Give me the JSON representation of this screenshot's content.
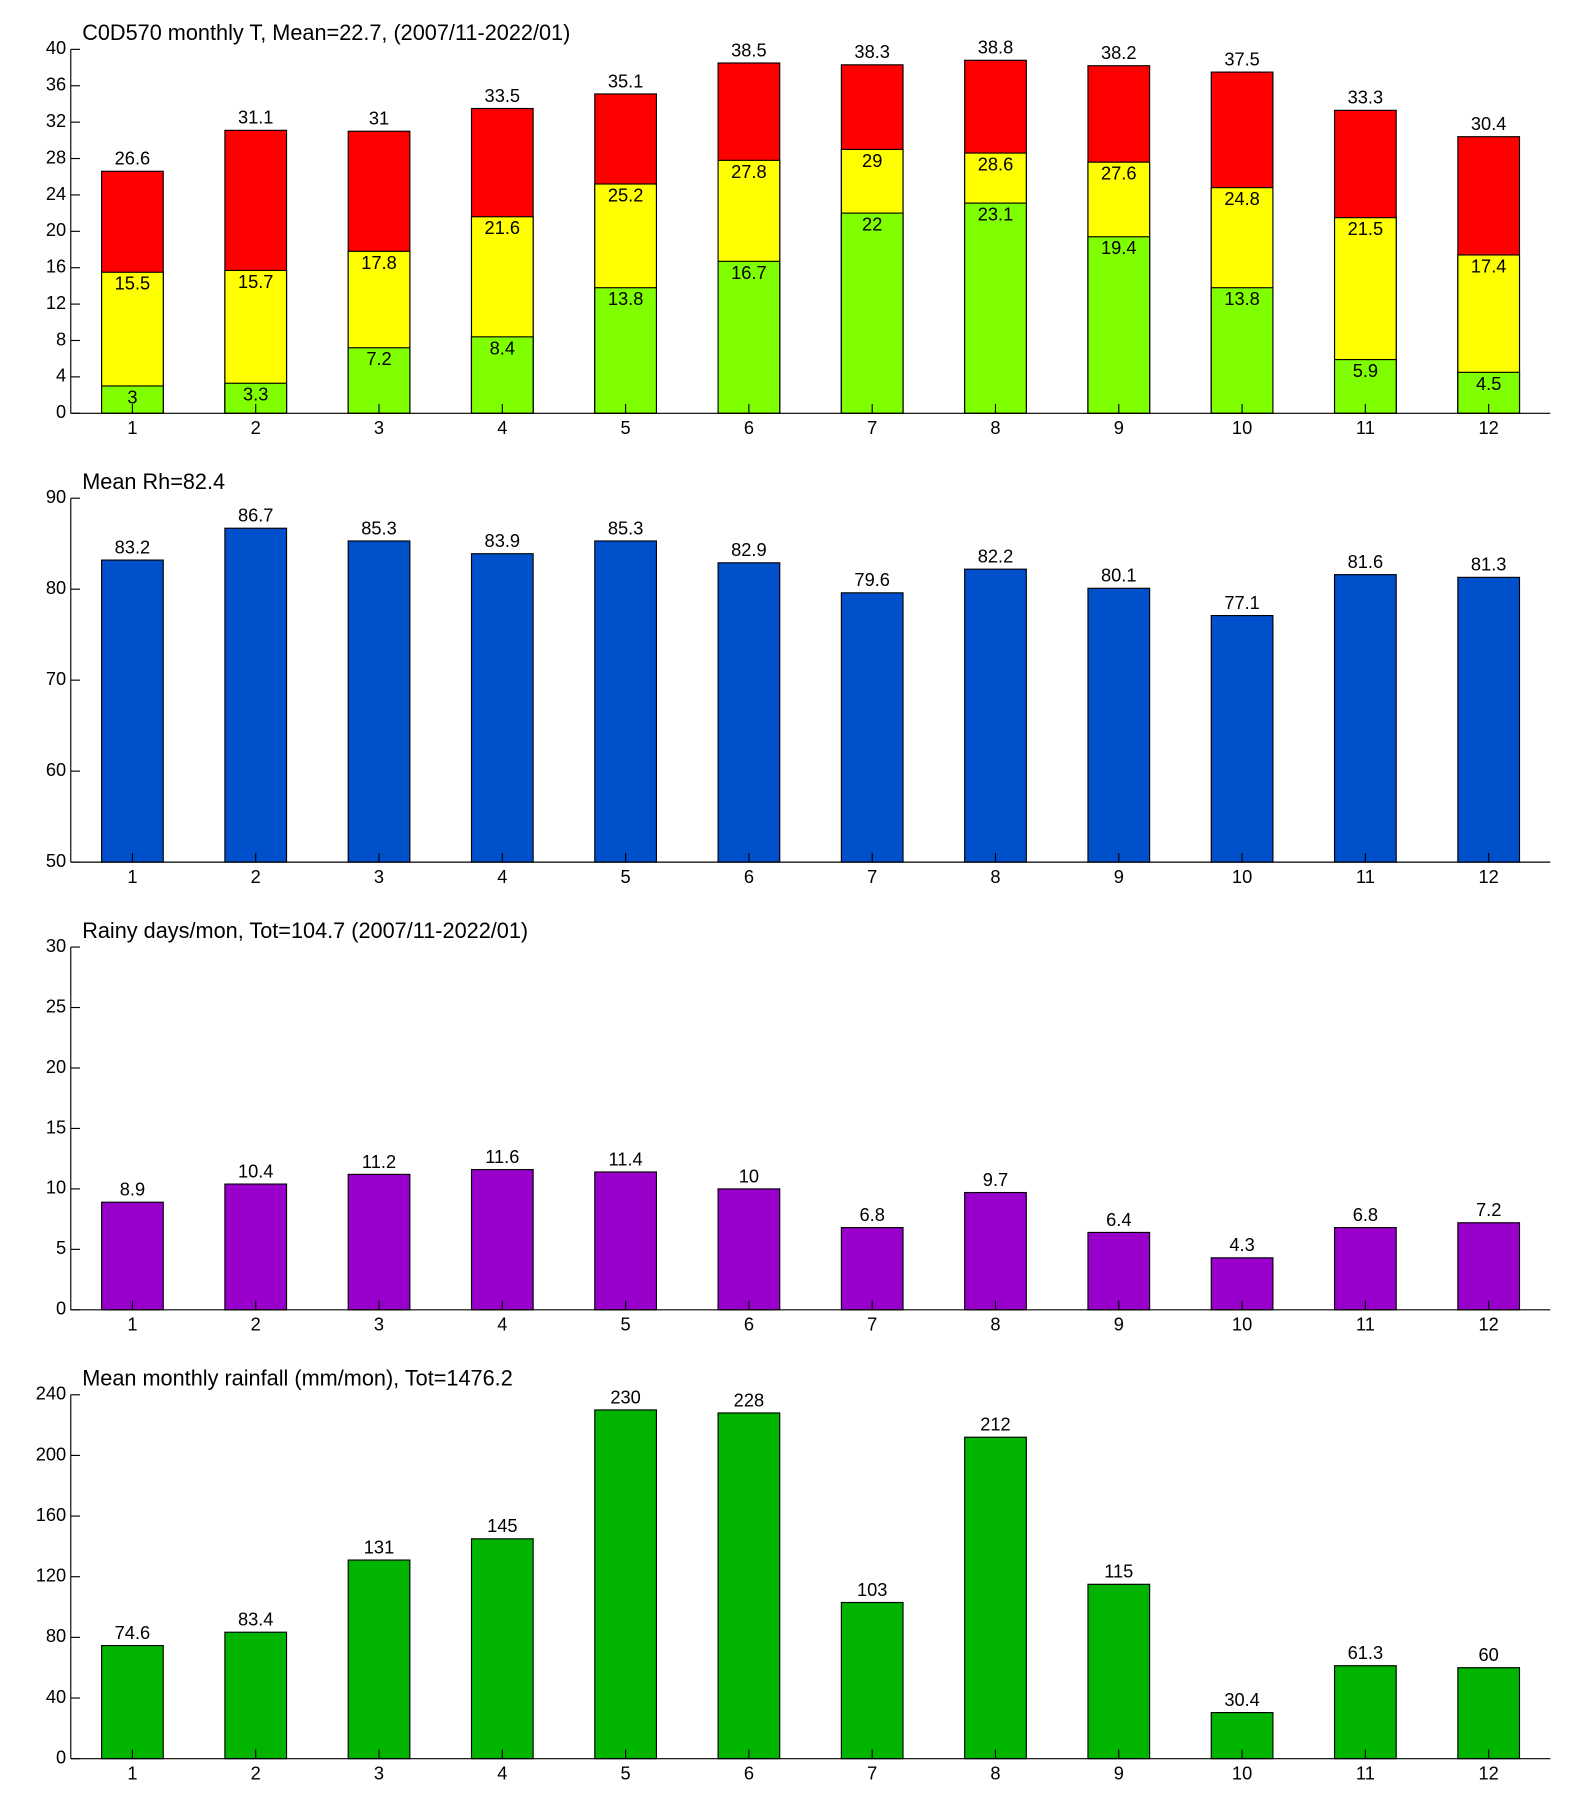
{
  "chart_data": [
    {
      "type": "bar",
      "title": "C0D570 monthly T, Mean=22.7, (2007/11-2022/01)",
      "categories": [
        "1",
        "2",
        "3",
        "4",
        "5",
        "6",
        "7",
        "8",
        "9",
        "10",
        "11",
        "12"
      ],
      "overlay": true,
      "series": [
        {
          "color": "#ff0000",
          "values": [
            26.6,
            31.1,
            31,
            33.5,
            35.1,
            38.5,
            38.3,
            38.8,
            38.2,
            37.5,
            33.3,
            30.4
          ]
        },
        {
          "color": "#ffff00",
          "values": [
            15.5,
            15.7,
            17.8,
            21.6,
            25.2,
            27.8,
            29,
            28.6,
            27.6,
            24.8,
            21.5,
            17.4
          ]
        },
        {
          "color": "#80ff00",
          "values": [
            3,
            3.3,
            7.2,
            8.4,
            13.8,
            16.7,
            22,
            23.1,
            19.4,
            13.8,
            5.9,
            4.5
          ]
        }
      ],
      "ylim": [
        0,
        40
      ],
      "yticks": [
        0,
        4,
        8,
        12,
        16,
        20,
        24,
        28,
        32,
        36,
        40
      ]
    },
    {
      "type": "bar",
      "title": "Mean Rh=82.4",
      "categories": [
        "1",
        "2",
        "3",
        "4",
        "5",
        "6",
        "7",
        "8",
        "9",
        "10",
        "11",
        "12"
      ],
      "series": [
        {
          "color": "#0050cc",
          "values": [
            83.2,
            86.7,
            85.3,
            83.9,
            85.3,
            82.9,
            79.6,
            82.2,
            80.1,
            77.1,
            81.6,
            81.3
          ]
        }
      ],
      "ylim": [
        50,
        90
      ],
      "yticks": [
        50,
        60,
        70,
        80,
        90
      ]
    },
    {
      "type": "bar",
      "title": "Rainy days/mon, Tot=104.7 (2007/11-2022/01)",
      "categories": [
        "1",
        "2",
        "3",
        "4",
        "5",
        "6",
        "7",
        "8",
        "9",
        "10",
        "11",
        "12"
      ],
      "series": [
        {
          "color": "#9900cc",
          "values": [
            8.9,
            10.4,
            11.2,
            11.6,
            11.4,
            10,
            6.8,
            9.7,
            6.4,
            4.3,
            6.8,
            7.2
          ]
        }
      ],
      "ylim": [
        0,
        30
      ],
      "yticks": [
        0,
        5,
        10,
        15,
        20,
        25,
        30
      ]
    },
    {
      "type": "bar",
      "title": "Mean monthly rainfall (mm/mon), Tot=1476.2",
      "categories": [
        "1",
        "2",
        "3",
        "4",
        "5",
        "6",
        "7",
        "8",
        "9",
        "10",
        "11",
        "12"
      ],
      "series": [
        {
          "color": "#00b400",
          "values": [
            74.6,
            83.4,
            131,
            145,
            230,
            228,
            103,
            212,
            115,
            30.4,
            61.3,
            60
          ]
        }
      ],
      "ylim": [
        0,
        240
      ],
      "yticks": [
        0,
        40,
        80,
        120,
        160,
        200,
        240
      ]
    }
  ]
}
